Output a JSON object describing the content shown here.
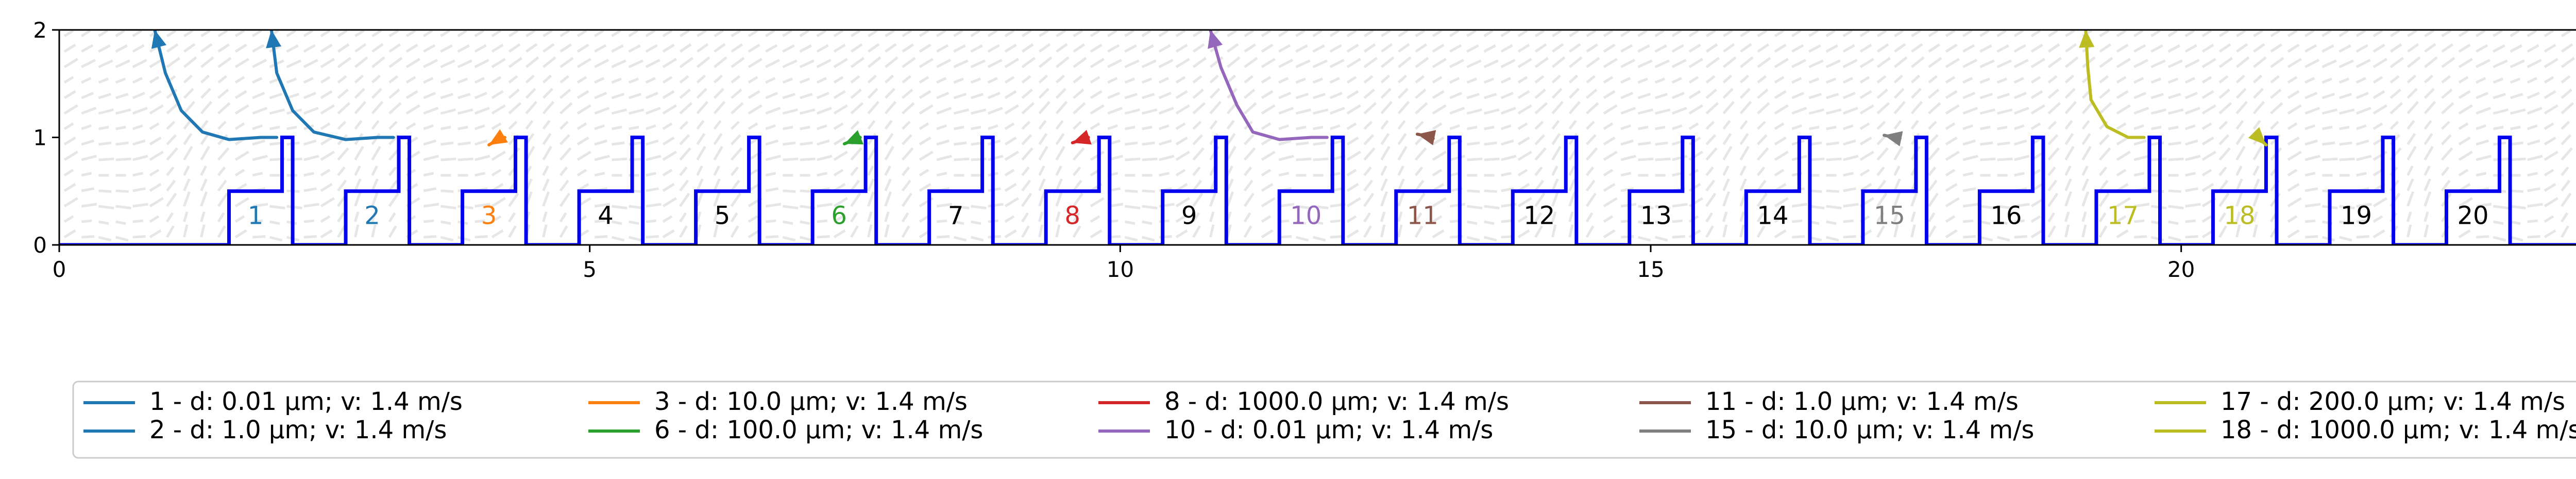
{
  "chart_data": {
    "type": "line",
    "title": "",
    "xlabel": "",
    "ylabel": "",
    "xlim": [
      0,
      24.1
    ],
    "ylim": [
      0,
      2
    ],
    "x_ticks": [
      0,
      5,
      10,
      15,
      20
    ],
    "y_ticks": [
      0,
      1,
      2
    ],
    "x_tick_labels": [
      "0",
      "5",
      "10",
      "15",
      "20"
    ],
    "y_tick_labels": [
      "0",
      "1",
      "2"
    ],
    "grid": false,
    "legend_position": "bottom",
    "background_field_color": "#e6e6e6",
    "geometry_color": "#0000ee",
    "geometry": [
      [
        0,
        0
      ],
      [
        1.6,
        0
      ],
      [
        1.6,
        0.5
      ],
      [
        2.1,
        0.5
      ],
      [
        2.1,
        1.0
      ],
      [
        2.2,
        1.0
      ],
      [
        2.2,
        0
      ],
      [
        2.7,
        0
      ],
      [
        2.7,
        0.5
      ],
      [
        3.2,
        0.5
      ],
      [
        3.2,
        1.0
      ],
      [
        3.3,
        1.0
      ],
      [
        3.3,
        0
      ],
      [
        3.8,
        0
      ],
      [
        3.8,
        0.5
      ],
      [
        4.3,
        0.5
      ],
      [
        4.3,
        1.0
      ],
      [
        4.4,
        1.0
      ],
      [
        4.4,
        0
      ],
      [
        4.9,
        0
      ],
      [
        4.9,
        0.5
      ],
      [
        5.4,
        0.5
      ],
      [
        5.4,
        1.0
      ],
      [
        5.5,
        1.0
      ],
      [
        5.5,
        0
      ],
      [
        6.0,
        0
      ],
      [
        6.0,
        0.5
      ],
      [
        6.5,
        0.5
      ],
      [
        6.5,
        1.0
      ],
      [
        6.6,
        1.0
      ],
      [
        6.6,
        0
      ],
      [
        7.1,
        0
      ],
      [
        7.1,
        0.5
      ],
      [
        7.6,
        0.5
      ],
      [
        7.6,
        1.0
      ],
      [
        7.7,
        1.0
      ],
      [
        7.7,
        0
      ],
      [
        8.2,
        0
      ],
      [
        8.2,
        0.5
      ],
      [
        8.7,
        0.5
      ],
      [
        8.7,
        1.0
      ],
      [
        8.8,
        1.0
      ],
      [
        8.8,
        0
      ],
      [
        9.3,
        0
      ],
      [
        9.3,
        0.5
      ],
      [
        9.8,
        0.5
      ],
      [
        9.8,
        1.0
      ],
      [
        9.9,
        1.0
      ],
      [
        9.9,
        0
      ],
      [
        10.4,
        0
      ],
      [
        10.4,
        0.5
      ],
      [
        10.9,
        0.5
      ],
      [
        10.9,
        1.0
      ],
      [
        11.0,
        1.0
      ],
      [
        11.0,
        0
      ],
      [
        11.5,
        0
      ],
      [
        11.5,
        0.5
      ],
      [
        12.0,
        0.5
      ],
      [
        12.0,
        1.0
      ],
      [
        12.1,
        1.0
      ],
      [
        12.1,
        0
      ],
      [
        12.6,
        0
      ],
      [
        12.6,
        0.5
      ],
      [
        13.1,
        0.5
      ],
      [
        13.1,
        1.0
      ],
      [
        13.2,
        1.0
      ],
      [
        13.2,
        0
      ],
      [
        13.7,
        0
      ],
      [
        13.7,
        0.5
      ],
      [
        14.2,
        0.5
      ],
      [
        14.2,
        1.0
      ],
      [
        14.3,
        1.0
      ],
      [
        14.3,
        0
      ],
      [
        14.8,
        0
      ],
      [
        14.8,
        0.5
      ],
      [
        15.3,
        0.5
      ],
      [
        15.3,
        1.0
      ],
      [
        15.4,
        1.0
      ],
      [
        15.4,
        0
      ],
      [
        15.9,
        0
      ],
      [
        15.9,
        0.5
      ],
      [
        16.4,
        0.5
      ],
      [
        16.4,
        1.0
      ],
      [
        16.5,
        1.0
      ],
      [
        16.5,
        0
      ],
      [
        17.0,
        0
      ],
      [
        17.0,
        0.5
      ],
      [
        17.5,
        0.5
      ],
      [
        17.5,
        1.0
      ],
      [
        17.6,
        1.0
      ],
      [
        17.6,
        0
      ],
      [
        18.1,
        0
      ],
      [
        18.1,
        0.5
      ],
      [
        18.6,
        0.5
      ],
      [
        18.6,
        1.0
      ],
      [
        18.7,
        1.0
      ],
      [
        18.7,
        0
      ],
      [
        19.2,
        0
      ],
      [
        19.2,
        0.5
      ],
      [
        19.7,
        0.5
      ],
      [
        19.7,
        1.0
      ],
      [
        19.8,
        1.0
      ],
      [
        19.8,
        0
      ],
      [
        20.3,
        0
      ],
      [
        20.3,
        0.5
      ],
      [
        20.8,
        0.5
      ],
      [
        20.8,
        1.0
      ],
      [
        20.9,
        1.0
      ],
      [
        20.9,
        0
      ],
      [
        21.4,
        0
      ],
      [
        21.4,
        0.5
      ],
      [
        21.9,
        0.5
      ],
      [
        21.9,
        1.0
      ],
      [
        22.0,
        1.0
      ],
      [
        22.0,
        0
      ],
      [
        22.5,
        0
      ],
      [
        22.5,
        0.5
      ],
      [
        23.0,
        0.5
      ],
      [
        23.0,
        1.0
      ],
      [
        23.1,
        1.0
      ],
      [
        23.1,
        0
      ],
      [
        24.1,
        0
      ]
    ],
    "cell_labels": [
      {
        "text": "1",
        "x": 1.85,
        "y": 0.27,
        "color": "#1f77b4"
      },
      {
        "text": "2",
        "x": 2.95,
        "y": 0.27,
        "color": "#1f77b4"
      },
      {
        "text": "3",
        "x": 4.05,
        "y": 0.27,
        "color": "#ff7f0e"
      },
      {
        "text": "4",
        "x": 5.15,
        "y": 0.27,
        "color": "#000000"
      },
      {
        "text": "5",
        "x": 6.25,
        "y": 0.27,
        "color": "#000000"
      },
      {
        "text": "6",
        "x": 7.35,
        "y": 0.27,
        "color": "#2ca02c"
      },
      {
        "text": "7",
        "x": 8.45,
        "y": 0.27,
        "color": "#000000"
      },
      {
        "text": "8",
        "x": 9.55,
        "y": 0.27,
        "color": "#d62728"
      },
      {
        "text": "9",
        "x": 10.65,
        "y": 0.27,
        "color": "#000000"
      },
      {
        "text": "10",
        "x": 11.75,
        "y": 0.27,
        "color": "#9467bd"
      },
      {
        "text": "11",
        "x": 12.85,
        "y": 0.27,
        "color": "#8c564b"
      },
      {
        "text": "12",
        "x": 13.95,
        "y": 0.27,
        "color": "#000000"
      },
      {
        "text": "13",
        "x": 15.05,
        "y": 0.27,
        "color": "#000000"
      },
      {
        "text": "14",
        "x": 16.15,
        "y": 0.27,
        "color": "#000000"
      },
      {
        "text": "15",
        "x": 17.25,
        "y": 0.27,
        "color": "#7f7f7f"
      },
      {
        "text": "16",
        "x": 18.35,
        "y": 0.27,
        "color": "#000000"
      },
      {
        "text": "17",
        "x": 19.45,
        "y": 0.27,
        "color": "#bcbd22"
      },
      {
        "text": "18",
        "x": 20.55,
        "y": 0.27,
        "color": "#bcbd22"
      },
      {
        "text": "19",
        "x": 21.65,
        "y": 0.27,
        "color": "#000000"
      },
      {
        "text": "20",
        "x": 22.75,
        "y": 0.27,
        "color": "#000000"
      }
    ],
    "series": [
      {
        "name": "1 - d: 0.01 µm; v: 1.4 m/s",
        "color": "#1f77b4",
        "x": [
          2.05,
          1.9,
          1.6,
          1.35,
          1.15,
          1.0,
          0.9
        ],
        "y": [
          1.0,
          1.0,
          0.98,
          1.05,
          1.25,
          1.6,
          2.0
        ]
      },
      {
        "name": "2 - d: 1.0 µm; v: 1.4 m/s",
        "color": "#1f77b4",
        "x": [
          3.15,
          3.0,
          2.7,
          2.4,
          2.2,
          2.05,
          2.0
        ],
        "y": [
          1.0,
          1.0,
          0.98,
          1.05,
          1.25,
          1.6,
          2.0
        ]
      },
      {
        "name": "3 - d: 10.0 µm; v: 1.4 m/s",
        "color": "#ff7f0e",
        "x": [
          4.2,
          4.12,
          4.1,
          4.05
        ],
        "y": [
          1.0,
          0.99,
          0.96,
          0.93
        ]
      },
      {
        "name": "6 - d: 100.0 µm; v: 1.4 m/s",
        "color": "#2ca02c",
        "x": [
          7.55,
          7.48,
          7.45,
          7.4
        ],
        "y": [
          1.0,
          0.99,
          0.96,
          0.94
        ]
      },
      {
        "name": "8 - d: 1000.0 µm; v: 1.4 m/s",
        "color": "#d62728",
        "x": [
          9.7,
          9.62,
          9.58,
          9.55
        ],
        "y": [
          1.0,
          0.98,
          0.96,
          0.95
        ]
      },
      {
        "name": "10 - d: 0.01 µm; v: 1.4 m/s",
        "color": "#9467bd",
        "x": [
          11.95,
          11.8,
          11.5,
          11.25,
          11.1,
          10.95,
          10.85
        ],
        "y": [
          1.0,
          1.0,
          0.98,
          1.05,
          1.3,
          1.65,
          2.0
        ]
      },
      {
        "name": "11 - d: 1.0 µm; v: 1.4 m/s",
        "color": "#8c564b",
        "x": [
          12.95,
          12.88,
          12.85,
          12.8
        ],
        "y": [
          0.99,
          1.0,
          1.02,
          1.03
        ]
      },
      {
        "name": "15 - d: 10.0 µm; v: 1.4 m/s",
        "color": "#7f7f7f",
        "x": [
          17.35,
          17.28,
          17.25,
          17.2
        ],
        "y": [
          0.99,
          1.0,
          1.01,
          1.02
        ]
      },
      {
        "name": "17 - d: 200.0 µm; v: 1.4 m/s",
        "color": "#bcbd22",
        "x": [
          19.65,
          19.5,
          19.3,
          19.15,
          19.12,
          19.1
        ],
        "y": [
          1.0,
          1.0,
          1.1,
          1.35,
          1.65,
          2.0
        ]
      },
      {
        "name": "18 - d: 1000.0 µm; v: 1.4 m/s",
        "color": "#bcbd22",
        "x": [
          20.75,
          20.7,
          20.78,
          20.8
        ],
        "y": [
          0.98,
          1.0,
          0.95,
          0.93
        ]
      }
    ]
  }
}
